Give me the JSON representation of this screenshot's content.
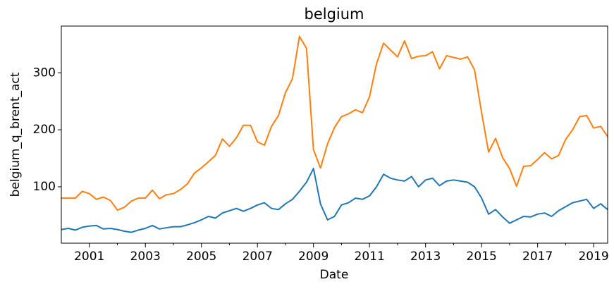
{
  "chart_data": {
    "type": "line",
    "title": "belgium",
    "xlabel": "Date",
    "ylabel": "belgium_q_brent_act",
    "x": [
      2000,
      2000.25,
      2000.5,
      2000.75,
      2001,
      2001.25,
      2001.5,
      2001.75,
      2002,
      2002.25,
      2002.5,
      2002.75,
      2003,
      2003.25,
      2003.5,
      2003.75,
      2004,
      2004.25,
      2004.5,
      2004.75,
      2005,
      2005.25,
      2005.5,
      2005.75,
      2006,
      2006.25,
      2006.5,
      2006.75,
      2007,
      2007.25,
      2007.5,
      2007.75,
      2008,
      2008.25,
      2008.5,
      2008.75,
      2009,
      2009.25,
      2009.5,
      2009.75,
      2010,
      2010.25,
      2010.5,
      2010.75,
      2011,
      2011.25,
      2011.5,
      2011.75,
      2012,
      2012.25,
      2012.5,
      2012.75,
      2013,
      2013.25,
      2013.5,
      2013.75,
      2014,
      2014.25,
      2014.5,
      2014.75,
      2015,
      2015.25,
      2015.5,
      2015.75,
      2016,
      2016.25,
      2016.5,
      2016.75,
      2017,
      2017.25,
      2017.5,
      2017.75,
      2018,
      2018.25,
      2018.5,
      2018.75,
      2019,
      2019.25,
      2019.5
    ],
    "series": [
      {
        "color": "#1f77b4",
        "values": [
          25,
          27,
          24,
          29,
          31,
          32,
          26,
          27,
          25,
          22,
          20,
          24,
          27,
          32,
          26,
          28,
          30,
          30,
          33,
          37,
          42,
          48,
          45,
          54,
          58,
          62,
          57,
          62,
          68,
          72,
          62,
          60,
          70,
          78,
          92,
          108,
          132,
          70,
          42,
          48,
          68,
          72,
          80,
          78,
          84,
          100,
          122,
          115,
          112,
          110,
          118,
          100,
          112,
          115,
          102,
          110,
          112,
          110,
          108,
          100,
          80,
          52,
          60,
          47,
          36,
          42,
          48,
          47,
          52,
          54,
          48,
          58,
          65,
          72,
          75,
          78,
          62,
          70,
          60
        ]
      },
      {
        "color": "#ff7f0e",
        "values": [
          80,
          80,
          80,
          92,
          88,
          78,
          82,
          76,
          59,
          64,
          75,
          80,
          80,
          94,
          79,
          86,
          88,
          95,
          105,
          124,
          133,
          144,
          155,
          184,
          171,
          186,
          208,
          208,
          179,
          173,
          206,
          225,
          265,
          290,
          364,
          343,
          165,
          133,
          175,
          204,
          223,
          228,
          235,
          230,
          258,
          316,
          352,
          340,
          328,
          356,
          325,
          329,
          330,
          337,
          307,
          330,
          327,
          324,
          328,
          305,
          230,
          161,
          185,
          151,
          132,
          101,
          136,
          137,
          148,
          160,
          149,
          155,
          183,
          200,
          223,
          225,
          203,
          206,
          188
        ]
      }
    ],
    "xlim": [
      2000,
      2019.5
    ],
    "xticks": [
      2001,
      2003,
      2005,
      2007,
      2009,
      2011,
      2013,
      2015,
      2017,
      2019
    ],
    "xminorticks": [
      2002,
      2004,
      2006,
      2008,
      2010,
      2012,
      2014,
      2016,
      2018
    ],
    "ylim": [
      1,
      382
    ],
    "yticks": [
      100,
      200,
      300
    ]
  }
}
